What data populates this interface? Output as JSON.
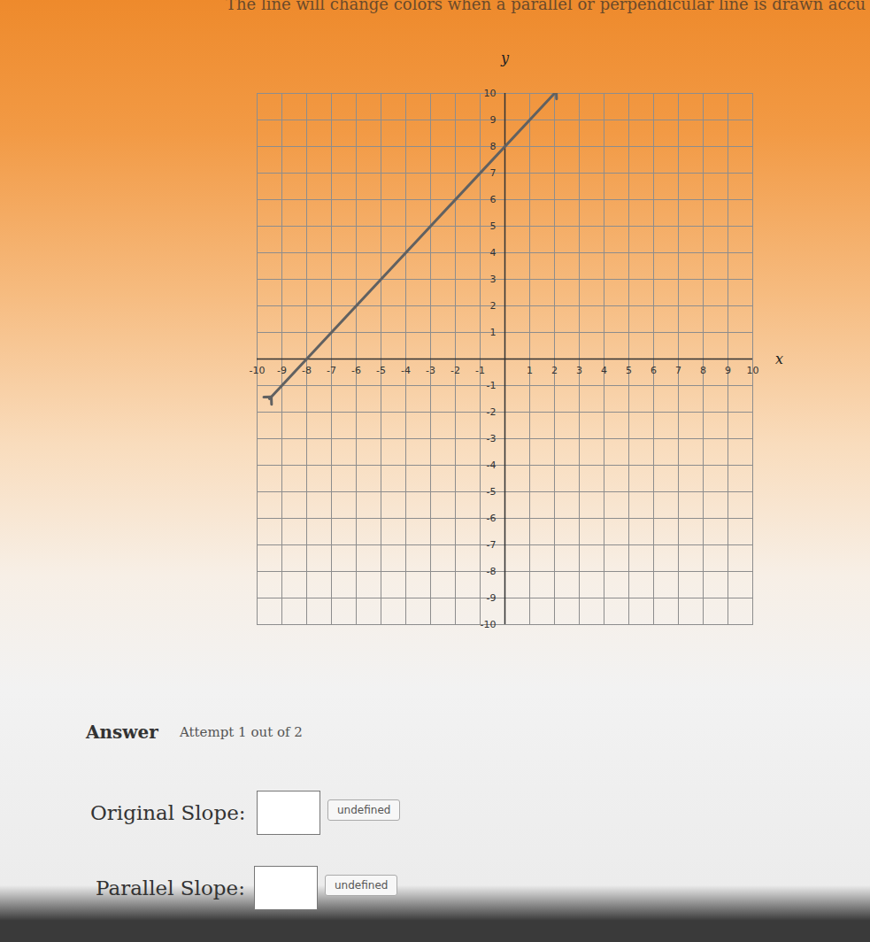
{
  "chart_data": {
    "type": "line",
    "title": "The line will change colors when a parallel or perpendicular line is drawn accu",
    "x_label": "x",
    "y_label": "y",
    "x": [
      -9.5,
      2
    ],
    "values": [
      -1.5,
      10
    ],
    "color": "#616161",
    "marker": "arrow",
    "xlim": [
      -10,
      10
    ],
    "ylim": [
      -10,
      10
    ],
    "xticks": [
      -10,
      -9,
      -8,
      -7,
      -6,
      -5,
      -4,
      -3,
      -2,
      -1,
      1,
      2,
      3,
      4,
      5,
      6,
      7,
      8,
      9,
      10
    ],
    "yticks": [
      -10,
      -9,
      -8,
      -7,
      -6,
      -5,
      -4,
      -3,
      -2,
      -1,
      1,
      2,
      3,
      4,
      5,
      6,
      7,
      8,
      9,
      10
    ],
    "grid": true
  },
  "answer_form": {
    "heading": "Answer",
    "attempt": "Attempt 1 out of 2",
    "rows": [
      {
        "label": "Original Slope:",
        "button": "undefined"
      },
      {
        "label": "Parallel Slope:",
        "button": "undefined"
      }
    ]
  }
}
